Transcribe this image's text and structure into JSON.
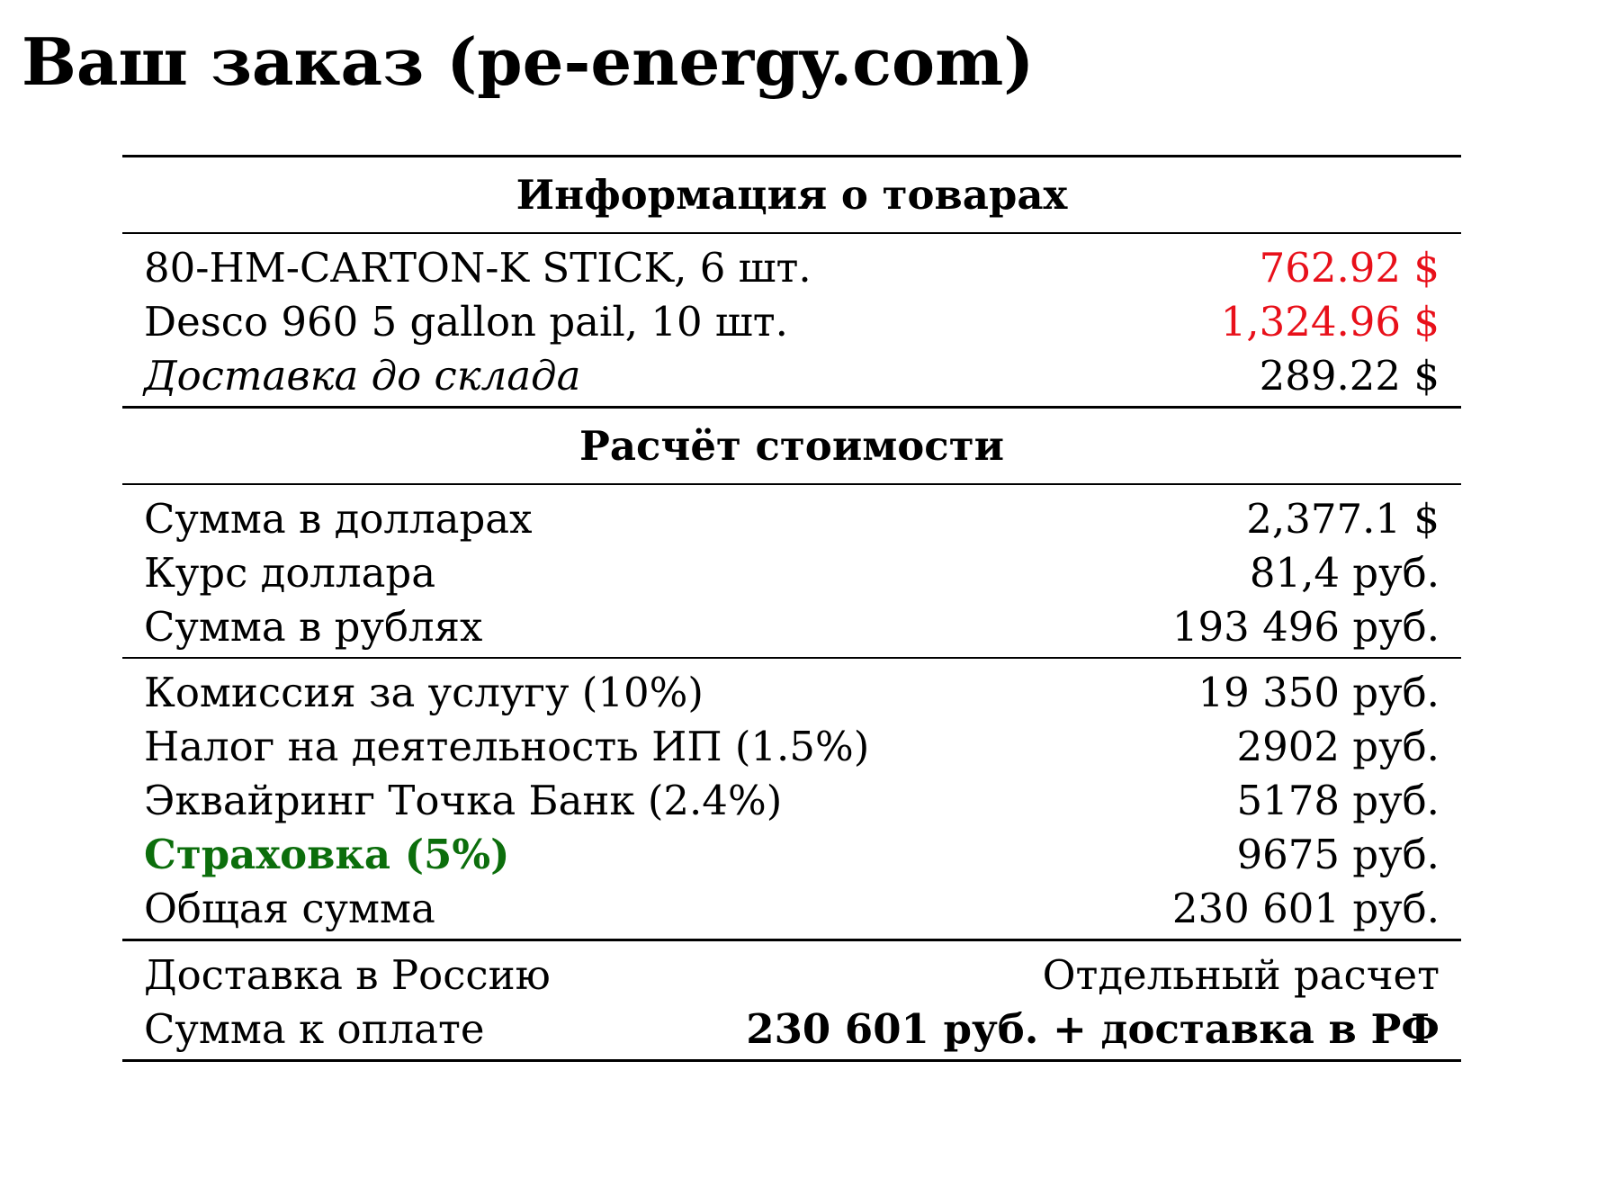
{
  "title": "Ваш заказ (pe-energy.com)",
  "colors": {
    "price_highlight": "#e8101a",
    "insurance_highlight": "#0c6e0c"
  },
  "products_section": {
    "header": "Информация о товарах",
    "items": [
      {
        "label": "80-HM-CARTON-K STICK, 6 шт.",
        "value": "762.92 $"
      },
      {
        "label": "Desco 960 5 gallon pail, 10 шт.",
        "value": "1,324.96 $"
      },
      {
        "label": "Доставка до склада",
        "value": "289.22 $"
      }
    ]
  },
  "calculation_section": {
    "header": "Расчёт стоимости",
    "conversion": [
      {
        "label": "Сумма в долларах",
        "value": "2,377.1 $"
      },
      {
        "label": "Курс доллара",
        "value": "81,4 руб."
      },
      {
        "label": "Сумма в рублях",
        "value": "193 496 руб."
      }
    ],
    "fees": [
      {
        "label": "Комиссия за услугу (10%)",
        "value": "19 350 руб."
      },
      {
        "label": "Налог на деятельность ИП (1.5%)",
        "value": "2902 руб."
      },
      {
        "label": "Эквайринг Точка Банк (2.4%)",
        "value": "5178 руб."
      },
      {
        "label": "Страховка (5%)",
        "value": "9675 руб."
      },
      {
        "label": "Общая сумма",
        "value": "230 601 руб."
      }
    ]
  },
  "final_section": {
    "rows": [
      {
        "label": "Доставка в Россию",
        "value": "Отдельный расчет"
      },
      {
        "label": "Сумма к оплате",
        "value": "230 601 руб. + доставка в РФ"
      }
    ]
  }
}
